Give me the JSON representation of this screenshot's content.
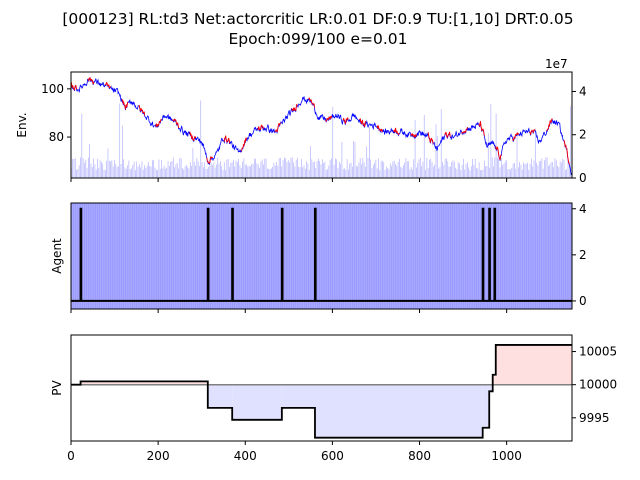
{
  "title_line1": "[000123] RL:td3 Net:actorcritic LR:0.01 DF:0.9 TU:[1,10] DRT:0.05",
  "title_line2": "Epoch:099/100 e=0.01",
  "chart_data": [
    {
      "panel": "env",
      "type": "line",
      "ylabel": "Env.",
      "y_ticks": [
        "80",
        "100"
      ],
      "y2_ticks": [
        "0",
        "2",
        "4"
      ],
      "y2_offset_label": "1e7",
      "xlim": [
        0,
        1150
      ],
      "ylim": [
        63,
        107
      ],
      "y2lim": [
        0,
        4.9
      ],
      "colors": {
        "price_line": "#0000ff",
        "trend_line": "#ff0000",
        "volume_bars": "#9999ff"
      },
      "price_anchors": [
        [
          0,
          101
        ],
        [
          20,
          100
        ],
        [
          40,
          104
        ],
        [
          55,
          103
        ],
        [
          70,
          102
        ],
        [
          90,
          100
        ],
        [
          110,
          98
        ],
        [
          125,
          92
        ],
        [
          140,
          95
        ],
        [
          155,
          92
        ],
        [
          175,
          88
        ],
        [
          195,
          84
        ],
        [
          215,
          89
        ],
        [
          240,
          86
        ],
        [
          260,
          82
        ],
        [
          280,
          80
        ],
        [
          300,
          78
        ],
        [
          315,
          70
        ],
        [
          335,
          73
        ],
        [
          350,
          80
        ],
        [
          365,
          78
        ],
        [
          385,
          73
        ],
        [
          405,
          80
        ],
        [
          425,
          83
        ],
        [
          445,
          84
        ],
        [
          470,
          82
        ],
        [
          490,
          87
        ],
        [
          510,
          91
        ],
        [
          530,
          96
        ],
        [
          550,
          95
        ],
        [
          570,
          88
        ],
        [
          590,
          87
        ],
        [
          610,
          89
        ],
        [
          630,
          86
        ],
        [
          650,
          89
        ],
        [
          665,
          86
        ],
        [
          680,
          85
        ],
        [
          700,
          85
        ],
        [
          720,
          82
        ],
        [
          740,
          83
        ],
        [
          760,
          82
        ],
        [
          780,
          81
        ],
        [
          800,
          82
        ],
        [
          820,
          80
        ],
        [
          840,
          75
        ],
        [
          860,
          81
        ],
        [
          880,
          80
        ],
        [
          900,
          83
        ],
        [
          920,
          84
        ],
        [
          940,
          85
        ],
        [
          955,
          76
        ],
        [
          970,
          77
        ],
        [
          985,
          72
        ],
        [
          1000,
          79
        ],
        [
          1020,
          80
        ],
        [
          1040,
          82
        ],
        [
          1060,
          82
        ],
        [
          1075,
          78
        ],
        [
          1090,
          82
        ],
        [
          1105,
          87
        ],
        [
          1120,
          85
        ],
        [
          1135,
          76
        ],
        [
          1150,
          65
        ]
      ]
    },
    {
      "panel": "agent",
      "type": "line",
      "ylabel": "Agent",
      "y2_ticks": [
        "0",
        "2",
        "4"
      ],
      "ylim": [
        -0.35,
        4.25
      ],
      "colors": {
        "action_line": "#000000",
        "background_bars": "#9999ff"
      },
      "action_spikes_x": [
        22,
        314,
        370,
        484,
        560,
        945,
        960,
        972
      ]
    },
    {
      "panel": "pv",
      "type": "area",
      "ylabel": "PV",
      "x_ticks": [
        "0",
        "200",
        "400",
        "600",
        "800",
        "1000"
      ],
      "y2_ticks": [
        "9995",
        "10000",
        "10005"
      ],
      "xlim": [
        0,
        1150
      ],
      "ylim": [
        9991.5,
        10007.5
      ],
      "baseline": 10000,
      "colors": {
        "pv_line": "#000000",
        "below_fill": "#e0e0ff",
        "above_fill": "#ffe0e0",
        "baseline": "#808080"
      },
      "pv_steps": [
        [
          0,
          10000
        ],
        [
          22,
          10000.5
        ],
        [
          314,
          9996.5
        ],
        [
          370,
          9994.7
        ],
        [
          484,
          9996.5
        ],
        [
          560,
          9992
        ],
        [
          945,
          9993.5
        ],
        [
          960,
          9999
        ],
        [
          968,
          10001.5
        ],
        [
          975,
          10006
        ],
        [
          1150,
          10006
        ]
      ]
    }
  ]
}
